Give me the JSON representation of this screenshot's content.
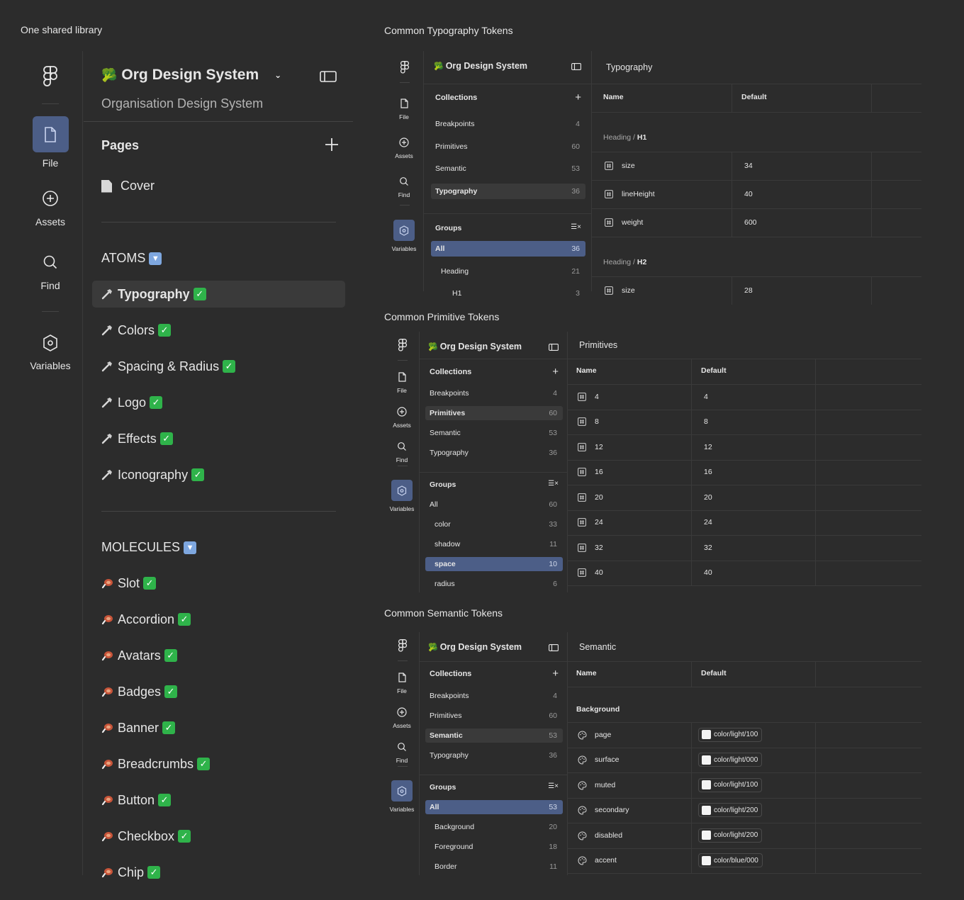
{
  "sections": {
    "left": "One shared library",
    "typography": "Common Typography Tokens",
    "primitive": "Common Primitive Tokens",
    "semantic": "Common Semantic Tokens"
  },
  "rail": {
    "file": "File",
    "assets": "Assets",
    "find": "Find",
    "variables": "Variables"
  },
  "library": {
    "title": "Org Design System",
    "subtitle": "Organisation Design System",
    "pages_label": "Pages",
    "cover": "Cover",
    "atoms_header": "ATOMS",
    "atoms": [
      "Typography",
      "Colors",
      "Spacing & Radius",
      "Logo",
      "Effects",
      "Iconography"
    ],
    "molecules_header": "MOLECULES",
    "molecules": [
      "Slot",
      "Accordion",
      "Avatars",
      "Badges",
      "Banner",
      "Breadcrumbs",
      "Button",
      "Checkbox",
      "Chip"
    ]
  },
  "panelA": {
    "title": "Org Design System",
    "main_title": "Typography",
    "collections_label": "Collections",
    "collections": [
      {
        "name": "Breakpoints",
        "count": "4"
      },
      {
        "name": "Primitives",
        "count": "60"
      },
      {
        "name": "Semantic",
        "count": "53"
      },
      {
        "name": "Typography",
        "count": "36"
      }
    ],
    "groups_label": "Groups",
    "groups": [
      {
        "name": "All",
        "count": "36"
      },
      {
        "name": "Heading",
        "count": "21"
      },
      {
        "name": "H1",
        "count": "3"
      }
    ],
    "col_name": "Name",
    "col_default": "Default",
    "group1_prefix": "Heading / ",
    "group1_name": "H1",
    "rows": [
      {
        "name": "size",
        "value": "34"
      },
      {
        "name": "lineHeight",
        "value": "40"
      },
      {
        "name": "weight",
        "value": "600"
      }
    ],
    "group2_prefix": "Heading / ",
    "group2_name": "H2",
    "cut_row": {
      "name": "size",
      "value": "28"
    }
  },
  "panelB": {
    "title": "Org Design System",
    "main_title": "Primitives",
    "collections_label": "Collections",
    "collections": [
      {
        "name": "Breakpoints",
        "count": "4"
      },
      {
        "name": "Primitives",
        "count": "60"
      },
      {
        "name": "Semantic",
        "count": "53"
      },
      {
        "name": "Typography",
        "count": "36"
      }
    ],
    "groups_label": "Groups",
    "groups": [
      {
        "name": "All",
        "count": "60"
      },
      {
        "name": "color",
        "count": "33"
      },
      {
        "name": "shadow",
        "count": "11"
      },
      {
        "name": "space",
        "count": "10"
      },
      {
        "name": "radius",
        "count": "6"
      }
    ],
    "col_name": "Name",
    "col_default": "Default",
    "rows": [
      {
        "name": "4",
        "value": "4"
      },
      {
        "name": "8",
        "value": "8"
      },
      {
        "name": "12",
        "value": "12"
      },
      {
        "name": "16",
        "value": "16"
      },
      {
        "name": "20",
        "value": "20"
      },
      {
        "name": "24",
        "value": "24"
      },
      {
        "name": "32",
        "value": "32"
      },
      {
        "name": "40",
        "value": "40"
      }
    ]
  },
  "panelC": {
    "title": "Org Design System",
    "main_title": "Semantic",
    "collections_label": "Collections",
    "collections": [
      {
        "name": "Breakpoints",
        "count": "4"
      },
      {
        "name": "Primitives",
        "count": "60"
      },
      {
        "name": "Semantic",
        "count": "53"
      },
      {
        "name": "Typography",
        "count": "36"
      }
    ],
    "groups_label": "Groups",
    "groups": [
      {
        "name": "All",
        "count": "53"
      },
      {
        "name": "Background",
        "count": "20"
      },
      {
        "name": "Foreground",
        "count": "18"
      },
      {
        "name": "Border",
        "count": "11"
      }
    ],
    "col_name": "Name",
    "col_default": "Default",
    "group_header": "Background",
    "rows": [
      {
        "name": "page",
        "value": "color/light/100"
      },
      {
        "name": "surface",
        "value": "color/light/000"
      },
      {
        "name": "muted",
        "value": "color/light/100"
      },
      {
        "name": "secondary",
        "value": "color/light/200"
      },
      {
        "name": "disabled",
        "value": "color/light/200"
      },
      {
        "name": "accent",
        "value": "color/blue/000"
      }
    ]
  },
  "colors": {
    "bg": "#2c2c2c",
    "accent": "#4c5e87",
    "check": "#2fb34a",
    "down_badge": "#7ea7df"
  }
}
